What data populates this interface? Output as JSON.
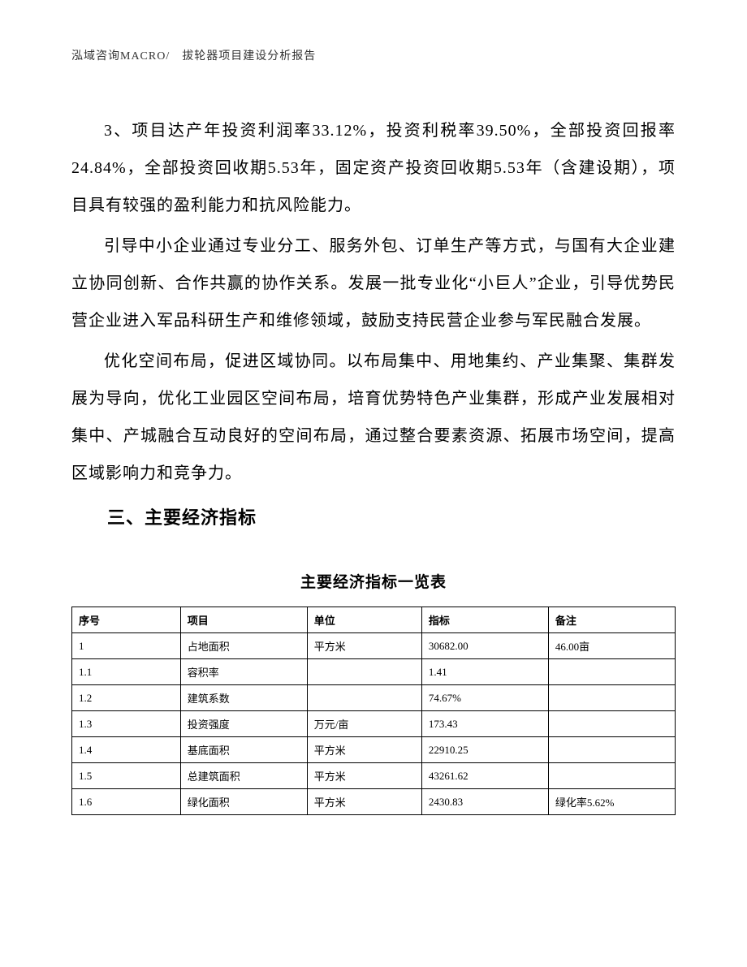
{
  "header": {
    "text": "泓域咨询MACRO/　拔轮器项目建设分析报告"
  },
  "paragraphs": {
    "p1": "3、项目达产年投资利润率33.12%，投资利税率39.50%，全部投资回报率24.84%，全部投资回收期5.53年，固定资产投资回收期5.53年（含建设期），项目具有较强的盈利能力和抗风险能力。",
    "p2": "引导中小企业通过专业分工、服务外包、订单生产等方式，与国有大企业建立协同创新、合作共赢的协作关系。发展一批专业化“小巨人”企业，引导优势民营企业进入军品科研生产和维修领域，鼓励支持民营企业参与军民融合发展。",
    "p3": "优化空间布局，促进区域协同。以布局集中、用地集约、产业集聚、集群发展为导向，优化工业园区空间布局，培育优势特色产业集群，形成产业发展相对集中、产城融合互动良好的空间布局，通过整合要素资源、拓展市场空间，提高区域影响力和竞争力。"
  },
  "section_heading": "三、主要经济指标",
  "table": {
    "title": "主要经济指标一览表",
    "columns": {
      "seq": "序号",
      "item": "项目",
      "unit": "单位",
      "value": "指标",
      "note": "备注"
    },
    "rows": [
      {
        "seq": "1",
        "item": "占地面积",
        "unit": "平方米",
        "value": "30682.00",
        "note": "46.00亩"
      },
      {
        "seq": "1.1",
        "item": "容积率",
        "unit": "",
        "value": "1.41",
        "note": ""
      },
      {
        "seq": "1.2",
        "item": "建筑系数",
        "unit": "",
        "value": "74.67%",
        "note": ""
      },
      {
        "seq": "1.3",
        "item": "投资强度",
        "unit": "万元/亩",
        "value": "173.43",
        "note": ""
      },
      {
        "seq": "1.4",
        "item": "基底面积",
        "unit": "平方米",
        "value": "22910.25",
        "note": ""
      },
      {
        "seq": "1.5",
        "item": "总建筑面积",
        "unit": "平方米",
        "value": "43261.62",
        "note": ""
      },
      {
        "seq": "1.6",
        "item": "绿化面积",
        "unit": "平方米",
        "value": "2430.83",
        "note": "绿化率5.62%"
      }
    ]
  }
}
